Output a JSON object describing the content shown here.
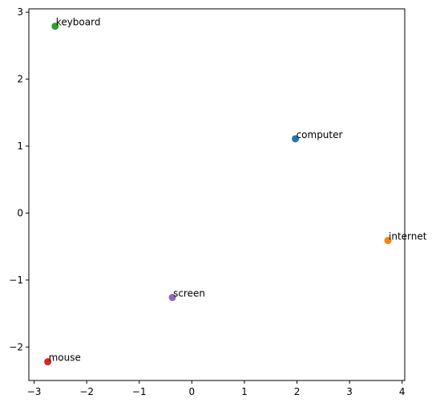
{
  "chart_data": {
    "type": "scatter",
    "title": "",
    "xlabel": "",
    "ylabel": "",
    "xlim": [
      -3.1,
      4.05
    ],
    "ylim": [
      -2.5,
      3.05
    ],
    "grid": false,
    "x_ticks": [
      -3,
      -2,
      -1,
      0,
      1,
      2,
      3,
      4
    ],
    "y_ticks": [
      -2,
      -1,
      0,
      1,
      2,
      3
    ],
    "points": [
      {
        "label": "computer",
        "x": 1.97,
        "y": 1.11,
        "color": "#1f77b4"
      },
      {
        "label": "internet",
        "x": 3.73,
        "y": -0.41,
        "color": "#ff7f0e"
      },
      {
        "label": "keyboard",
        "x": -2.6,
        "y": 2.79,
        "color": "#2ca02c"
      },
      {
        "label": "mouse",
        "x": -2.74,
        "y": -2.22,
        "color": "#d62728"
      },
      {
        "label": "screen",
        "x": -0.37,
        "y": -1.26,
        "color": "#9467bd"
      }
    ]
  }
}
